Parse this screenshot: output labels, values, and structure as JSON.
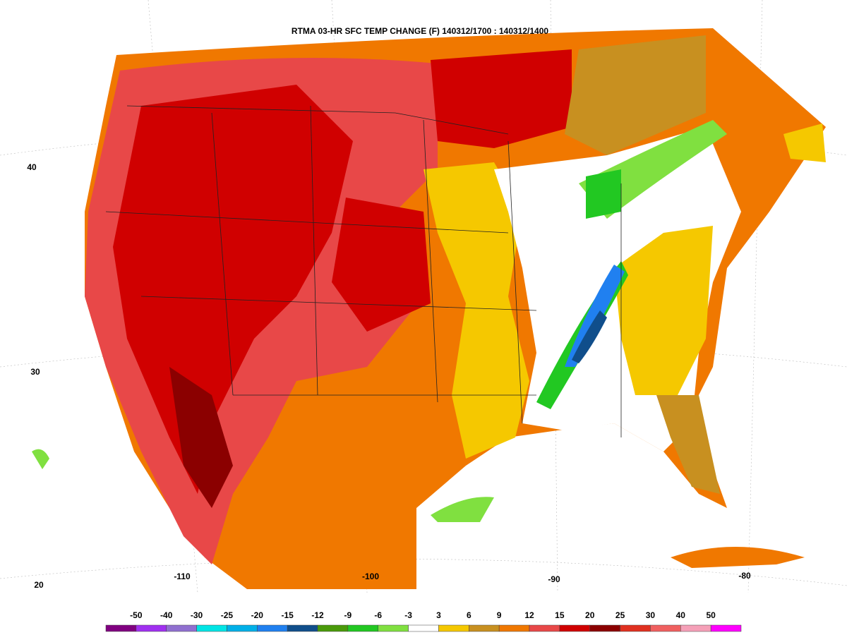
{
  "title": "RTMA 03-HR SFC TEMP CHANGE (F) 140312/1700 : 140312/1400",
  "lat_labels": [
    "40",
    "30",
    "20"
  ],
  "lon_labels": [
    "-110",
    "-100",
    "-90",
    "-80"
  ],
  "colorbar": {
    "labels": [
      -50,
      -40,
      -30,
      -25,
      -20,
      -15,
      -12,
      -9,
      -6,
      -3,
      3,
      6,
      9,
      12,
      15,
      20,
      25,
      30,
      40,
      50
    ],
    "colors": [
      "#800080",
      "#a030f0",
      "#9070d0",
      "#00e5e5",
      "#00b0e8",
      "#2080f0",
      "#104e8b",
      "#4a9a0a",
      "#22c822",
      "#80e040",
      "#ffffff",
      "#f5c800",
      "#c89020",
      "#f07800",
      "#e84848",
      "#d00000",
      "#8b0000",
      "#e03020",
      "#f06060",
      "#f5a0b8",
      "#ff00ff"
    ]
  }
}
